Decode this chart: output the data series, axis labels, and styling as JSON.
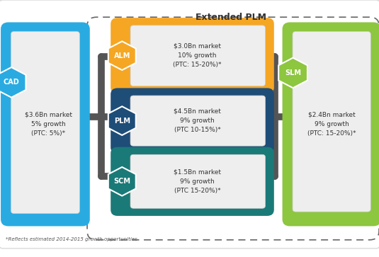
{
  "title": "Extended PLM",
  "bg_color": "#ffffff",
  "figure_bg": "#f0f0f0",
  "cad": {
    "label": "CAD",
    "color": "#29abe2",
    "text": "$3.6Bn market\n5% growth\n(PTC: 5%)*"
  },
  "slm": {
    "label": "SLM",
    "color": "#8dc63f",
    "text": "$2.4Bn market\n9% growth\n(PTC: 15-20%)*"
  },
  "alm": {
    "label": "ALM",
    "color": "#f5a623",
    "text": "$3.0Bn market\n10% growth\n(PTC: 15-20%)*"
  },
  "plm": {
    "label": "PLM",
    "color": "#1e4d78",
    "text": "$4.5Bn market\n9% growth\n(PTC 10-15%)*"
  },
  "scm": {
    "label": "SCM",
    "color": "#1a7a78",
    "text": "$1.5Bn market\n9% growth\n(PTC 15-20%)*"
  },
  "connector_color": "#555555",
  "dash_color": "#666666",
  "inner_box_color": "#eeeeee",
  "inner_box_edge": "#cccccc",
  "footnote": "*Reflects estimated 2014-2015 growth opportunities"
}
